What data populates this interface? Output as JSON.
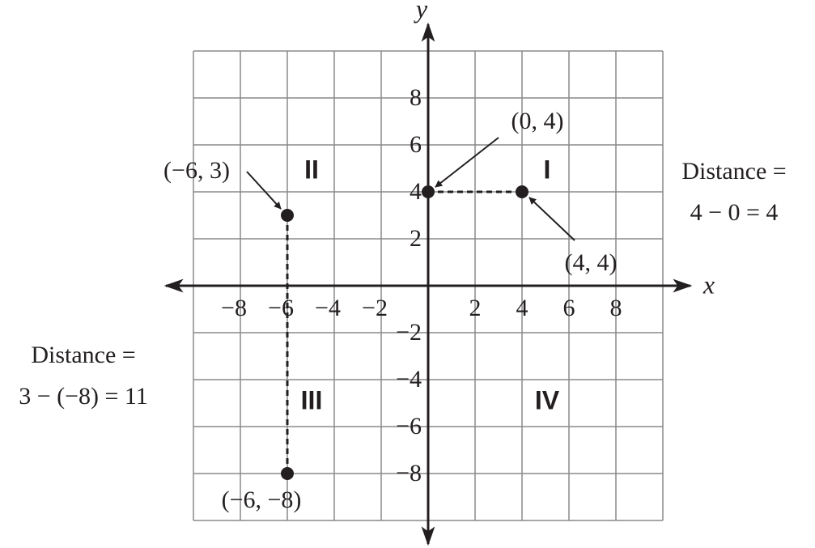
{
  "chart_data": {
    "type": "scatter",
    "x_label": "x",
    "y_label": "y",
    "xlim": [
      -10,
      10
    ],
    "ylim": [
      -10,
      10
    ],
    "xticks": [
      {
        "value": -8,
        "label": "−8"
      },
      {
        "value": -6,
        "label": "−6"
      },
      {
        "value": -4,
        "label": "−4"
      },
      {
        "value": -2,
        "label": "−2"
      },
      2,
      4,
      6,
      8
    ],
    "yticks": [
      {
        "value": -8,
        "label": "−8"
      },
      {
        "value": -6,
        "label": "−6"
      },
      {
        "value": -4,
        "label": "−4"
      },
      {
        "value": -2,
        "label": "−2"
      },
      2,
      4,
      6,
      8
    ],
    "grid": true,
    "color": "#231f20",
    "x": [
      0,
      4,
      -6,
      -6
    ],
    "values": [
      4,
      4,
      3,
      -8
    ],
    "point_labels": [
      "(0, 4)",
      "(4, 4)",
      "(−6, 3)",
      "(−6, −8)"
    ],
    "quadrants": [
      "I",
      "II",
      "III",
      "IV"
    ],
    "annotations": [
      [
        "Distance =",
        "4 − 0 = 4"
      ],
      [
        "Distance =",
        "3 − (−8) = 11"
      ]
    ]
  }
}
